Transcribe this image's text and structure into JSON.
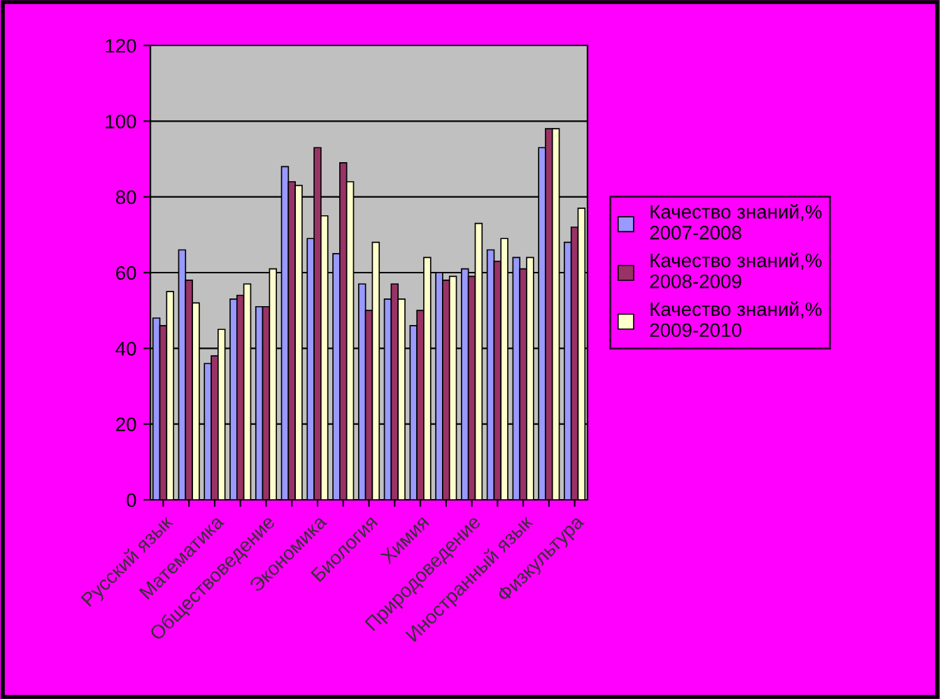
{
  "chart_data": {
    "type": "bar",
    "categories": [
      "Русский язык",
      null,
      "Математика",
      null,
      "Обществоведение",
      null,
      "Экономика",
      null,
      "Биология",
      null,
      "Химия",
      null,
      "Природоведение",
      null,
      "Иностранный язык",
      null,
      "Физкультура"
    ],
    "series": [
      {
        "name": "Качество знаний,% 2007-2008",
        "color": "#9999ff",
        "values": [
          48,
          66,
          36,
          53,
          51,
          88,
          69,
          65,
          57,
          53,
          46,
          60,
          61,
          66,
          64,
          93,
          68
        ]
      },
      {
        "name": "Качество знаний,% 2008-2009",
        "color": "#993366",
        "values": [
          46,
          58,
          38,
          54,
          51,
          84,
          93,
          89,
          50,
          57,
          50,
          58,
          59,
          63,
          61,
          98,
          72
        ]
      },
      {
        "name": "Качество знаний,% 2009-2010",
        "color": "#ffffcc",
        "values": [
          55,
          52,
          45,
          57,
          61,
          83,
          75,
          84,
          68,
          53,
          64,
          59,
          73,
          69,
          64,
          98,
          77
        ]
      }
    ],
    "ylim": [
      0,
      120
    ],
    "yticks": [
      0,
      20,
      40,
      60,
      80,
      100,
      120
    ],
    "grid": "y",
    "legend": "right"
  }
}
